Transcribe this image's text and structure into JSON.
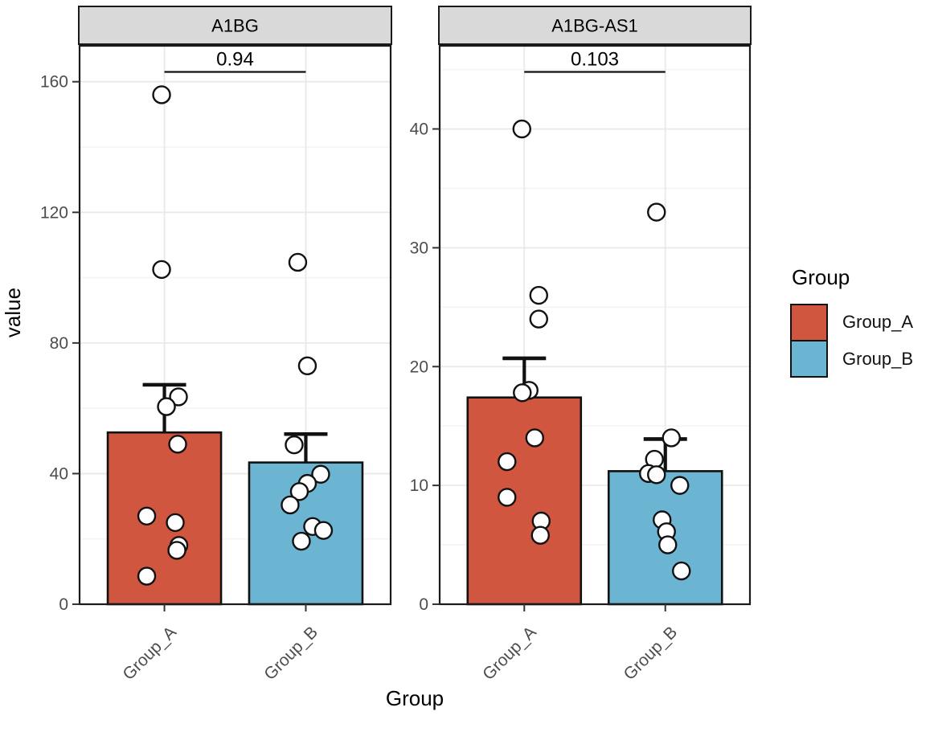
{
  "figure": {
    "background": "#FFFFFF"
  },
  "axes": {
    "y_title": "value",
    "x_title": "Group"
  },
  "legend": {
    "title": "Group",
    "items": [
      {
        "label": "Group_A",
        "color": "#D1563F"
      },
      {
        "label": "Group_B",
        "color": "#6BB5D2"
      }
    ]
  },
  "style": {
    "strip_fill": "#D9D9D9",
    "panel_border": "#1A1A1A",
    "grid_major": "#E9E9E9",
    "grid_minor": "#F4F4F4",
    "axis_text": "#4D4D4D",
    "point_fill": "#FFFFFF",
    "outline": "#111111"
  },
  "chart_data": {
    "type": "bar",
    "description": "Faceted bar chart (ggplot style): mean value per group with SE error bars, jittered open-circle data points, and p-value comparison brackets.",
    "categories": [
      "Group_A",
      "Group_B"
    ],
    "legend_position": "right",
    "grid": true,
    "facets": [
      {
        "title": "A1BG",
        "p_value": "0.94",
        "ylim": [
          0,
          171
        ],
        "yticks": [
          0,
          40,
          80,
          120,
          160
        ],
        "yminor": [
          20,
          60,
          100,
          140
        ],
        "bracket_y": 163,
        "groups": [
          {
            "name": "Group_A",
            "mean": 52.6,
            "se_top": 67.2,
            "points": [
              {
                "v": 156,
                "jx": -3.5
              },
              {
                "v": 102.5,
                "jx": -3.5
              },
              {
                "v": 63.5,
                "jx": 17.5
              },
              {
                "v": 60.5,
                "jx": 2.5
              },
              {
                "v": 49,
                "jx": 16.5
              },
              {
                "v": 27,
                "jx": -22
              },
              {
                "v": 25,
                "jx": 13.5
              },
              {
                "v": 18,
                "jx": 18
              },
              {
                "v": 16.5,
                "jx": 15.5
              },
              {
                "v": 8.6,
                "jx": -22
              }
            ]
          },
          {
            "name": "Group_B",
            "mean": 43.4,
            "se_top": 52.1,
            "points": [
              {
                "v": 104.7,
                "jx": -10
              },
              {
                "v": 73,
                "jx": 2
              },
              {
                "v": 48.8,
                "jx": -14.5
              },
              {
                "v": 39.8,
                "jx": 18.5
              },
              {
                "v": 37,
                "jx": 2
              },
              {
                "v": 34.5,
                "jx": -8
              },
              {
                "v": 30.4,
                "jx": -19.5
              },
              {
                "v": 23.8,
                "jx": 8.5
              },
              {
                "v": 22.6,
                "jx": 22
              },
              {
                "v": 19.3,
                "jx": -5.5
              }
            ]
          }
        ]
      },
      {
        "title": "A1BG-AS1",
        "p_value": "0.103",
        "ylim": [
          0,
          47
        ],
        "yticks": [
          0,
          10,
          20,
          30,
          40
        ],
        "yminor": [
          5,
          15,
          25,
          35,
          45
        ],
        "bracket_y": 44.8,
        "groups": [
          {
            "name": "Group_A",
            "mean": 17.4,
            "se_top": 20.7,
            "points": [
              {
                "v": 40,
                "jx": -3
              },
              {
                "v": 26,
                "jx": 18
              },
              {
                "v": 24,
                "jx": 18
              },
              {
                "v": 18,
                "jx": 6
              },
              {
                "v": 17.8,
                "jx": -2.5
              },
              {
                "v": 14,
                "jx": 13
              },
              {
                "v": 12,
                "jx": -21.5
              },
              {
                "v": 9,
                "jx": -21.5
              },
              {
                "v": 7,
                "jx": 21
              },
              {
                "v": 5.8,
                "jx": 20
              }
            ]
          },
          {
            "name": "Group_B",
            "mean": 11.2,
            "se_top": 13.9,
            "points": [
              {
                "v": 33,
                "jx": -11
              },
              {
                "v": 14,
                "jx": 7.5
              },
              {
                "v": 12.2,
                "jx": -13.5
              },
              {
                "v": 11,
                "jx": -21
              },
              {
                "v": 10.9,
                "jx": -11
              },
              {
                "v": 10,
                "jx": 18
              },
              {
                "v": 7.1,
                "jx": -4
              },
              {
                "v": 6.1,
                "jx": 1.5
              },
              {
                "v": 5,
                "jx": 3
              },
              {
                "v": 2.8,
                "jx": 20
              }
            ]
          }
        ]
      }
    ]
  }
}
